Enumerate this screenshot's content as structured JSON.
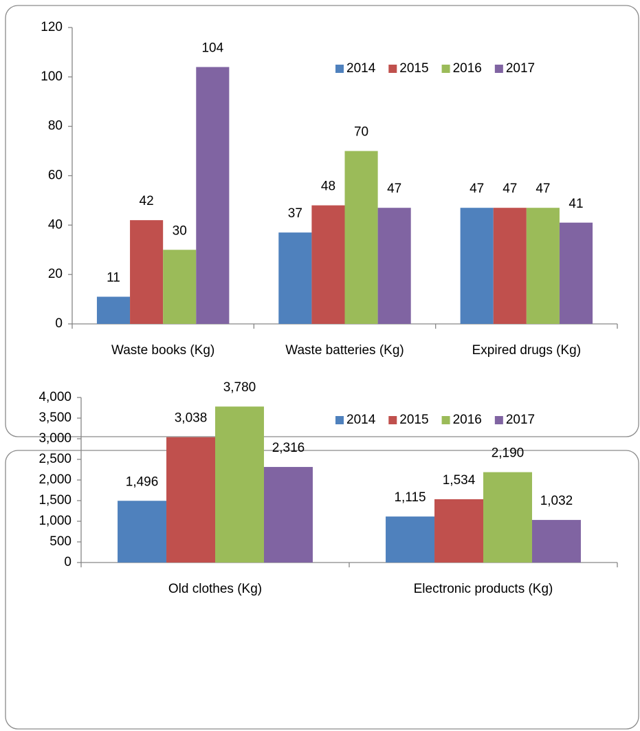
{
  "chart_data": [
    {
      "type": "bar",
      "categories": [
        "Waste books (Kg)",
        "Waste batteries (Kg)",
        "Expired drugs (Kg)"
      ],
      "series": [
        {
          "name": "2014",
          "color": "#4f81bd",
          "values": [
            11,
            37,
            47
          ]
        },
        {
          "name": "2015",
          "color": "#c0504d",
          "values": [
            42,
            48,
            47
          ]
        },
        {
          "name": "2016",
          "color": "#9bbb59",
          "values": [
            30,
            70,
            47
          ]
        },
        {
          "name": "2017",
          "color": "#8064a2",
          "values": [
            104,
            47,
            41
          ]
        }
      ],
      "ylim": [
        0,
        120
      ],
      "yticks": [
        0,
        20,
        40,
        60,
        80,
        100,
        120
      ],
      "grid": false,
      "legend": "top-right"
    },
    {
      "type": "bar",
      "categories": [
        "Old clothes (Kg)",
        "Electronic products (Kg)"
      ],
      "series": [
        {
          "name": "2014",
          "color": "#4f81bd",
          "values": [
            1496,
            1115
          ],
          "value_labels": [
            "1,496",
            "1,115"
          ]
        },
        {
          "name": "2015",
          "color": "#c0504d",
          "values": [
            3038,
            1534
          ],
          "value_labels": [
            "3,038",
            "1,534"
          ]
        },
        {
          "name": "2016",
          "color": "#9bbb59",
          "values": [
            3780,
            2190
          ],
          "value_labels": [
            "3,780",
            "2,190"
          ]
        },
        {
          "name": "2017",
          "color": "#8064a2",
          "values": [
            2316,
            1032
          ],
          "value_labels": [
            "2,316",
            "1,032"
          ]
        }
      ],
      "ylim": [
        0,
        4000
      ],
      "yticks": [
        0,
        500,
        {
          "value": 1000,
          "label": "1,000"
        },
        {
          "value": 1500,
          "label": "1,500"
        },
        {
          "value": 2000,
          "label": "2,000"
        },
        {
          "value": 2500,
          "label": "2,500"
        },
        {
          "value": 3000,
          "label": "3,000"
        },
        {
          "value": 3500,
          "label": "3,500"
        },
        {
          "value": 4000,
          "label": "4,000"
        }
      ],
      "grid": false,
      "legend": "top-right"
    }
  ]
}
